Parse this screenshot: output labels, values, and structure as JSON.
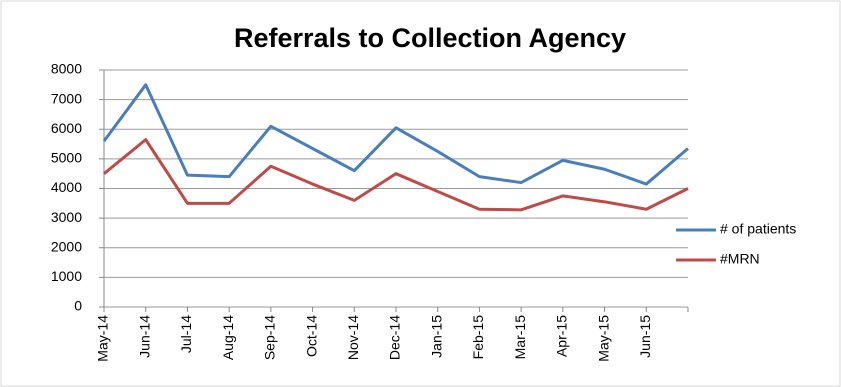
{
  "chart_data": {
    "type": "line",
    "title": "Referrals to Collection Agency",
    "categories": [
      "May-14",
      "Jun-14",
      "Jul-14",
      "Aug-14",
      "Sep-14",
      "Oct-14",
      "Nov-14",
      "Dec-14",
      "Jan-15",
      "Feb-15",
      "Mar-15",
      "Apr-15",
      "May-15",
      "Jun-15",
      null
    ],
    "series": [
      {
        "name": "# of patients",
        "color": "#4a7ebb",
        "values": [
          5600,
          7500,
          4450,
          4400,
          6100,
          5350,
          4600,
          6050,
          5250,
          4400,
          4200,
          4950,
          4650,
          4150,
          5350
        ]
      },
      {
        "name": "#MRN",
        "color": "#be4b48",
        "values": [
          4500,
          5650,
          3500,
          3500,
          4750,
          4150,
          3600,
          4500,
          3900,
          3300,
          3280,
          3750,
          3550,
          3300,
          4000
        ]
      }
    ],
    "ylim": [
      0,
      8000
    ],
    "yticks": [
      0,
      1000,
      2000,
      3000,
      4000,
      5000,
      6000,
      7000,
      8000
    ],
    "grid": true,
    "legend": "right"
  }
}
